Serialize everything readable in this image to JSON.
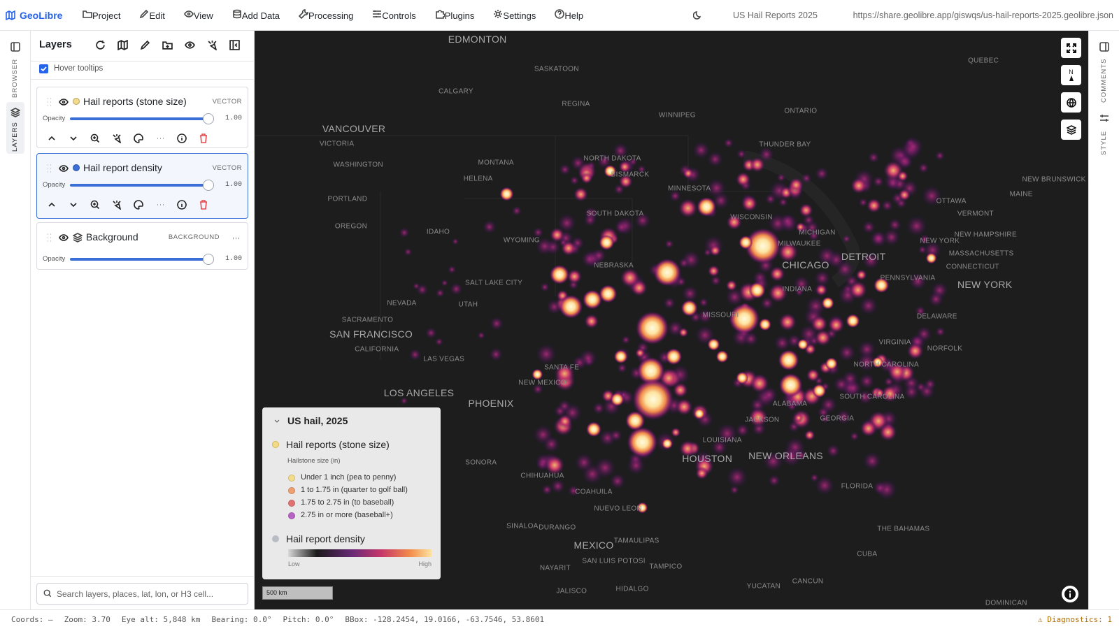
{
  "header": {
    "brand": "GeoLibre",
    "menu": [
      "Project",
      "Edit",
      "View",
      "Add Data",
      "Processing",
      "Controls",
      "Plugins",
      "Settings",
      "Help"
    ],
    "project_title": "US Hail Reports 2025",
    "url": "https://share.geolibre.app/giswqs/us-hail-reports-2025.geolibre.json"
  },
  "left_rail": [
    "BROWSER",
    "LAYERS"
  ],
  "right_rail": [
    "COMMENTS",
    "STYLE"
  ],
  "layers_panel": {
    "title": "Layers",
    "hover_tooltips": "Hover tooltips",
    "layers": [
      {
        "name": "Hail reports (stone size)",
        "kind": "VECTOR",
        "color": "#f3d98a",
        "opacity_label": "Opacity",
        "opacity": "1.00"
      },
      {
        "name": "Hail report density",
        "kind": "VECTOR",
        "color": "#3b6fd8",
        "opacity_label": "Opacity",
        "opacity": "1.00"
      },
      {
        "name": "Background",
        "kind": "BACKGROUND",
        "opacity_label": "Opacity",
        "opacity": "1.00"
      }
    ],
    "search_placeholder": "Search layers, places, lat, lon, or H3 cell..."
  },
  "legend": {
    "title": "US hail, 2025",
    "reports": {
      "name": "Hail reports (stone size)",
      "color": "#f3d98a",
      "subtitle": "Hailstone size (in)",
      "items": [
        {
          "label": "Under 1 inch (pea to penny)",
          "color": "#f3dc8a"
        },
        {
          "label": "1 to 1.75 in (quarter to golf ball)",
          "color": "#eea070"
        },
        {
          "label": "1.75 to 2.75 in (to baseball)",
          "color": "#e27272"
        },
        {
          "label": "2.75 in or more (baseball+)",
          "color": "#b862c5"
        }
      ]
    },
    "density": {
      "name": "Hail report density",
      "color": "#b8bcc4",
      "low": "Low",
      "high": "High"
    }
  },
  "map": {
    "compass": "N",
    "scale": "500 km",
    "labels": [
      "EDMONTON",
      "SASKATOON",
      "CALGARY",
      "REGINA",
      "WINNIPEG",
      "ONTARIO",
      "QUEBEC",
      "VANCOUVER",
      "VICTORIA",
      "WASHINGTON",
      "THUNDER BAY",
      "NORTH DAKOTA",
      "MONTANA",
      "HELENA",
      "BISMARCK",
      "MINNESOTA",
      "NEW BRUNSWICK",
      "MAINE",
      "PORTLAND",
      "OTTAWA",
      "VERMONT",
      "SOUTH DAKOTA",
      "WISCONSIN",
      "OREGON",
      "IDAHO",
      "MICHIGAN",
      "NEW HAMPSHIRE",
      "WYOMING",
      "MILWAUKEE",
      "NEW YORK",
      "DETROIT",
      "MASSACHUSETTS",
      "CONNECTICUT",
      "CHICAGO",
      "NEBRASKA",
      "PENNSYLVANIA",
      "SALT LAKE CITY",
      "NEW YORK",
      "NEVADA",
      "UTAH",
      "INDIANA",
      "MISSOURI",
      "DELAWARE",
      "SACRAMENTO",
      "SAN FRANCISCO",
      "VIRGINIA",
      "NORFOLK",
      "CALIFORNIA",
      "LAS VEGAS",
      "SANTA FE",
      "NORTH CAROLINA",
      "NEW MEXICO",
      "LOS ANGELES",
      "PHOENIX",
      "ALABAMA",
      "SOUTH CAROLINA",
      "GEORGIA",
      "JACKSON",
      "LOUISIANA",
      "HOUSTON",
      "NEW ORLEANS",
      "SONORA",
      "CHIHUAHUA",
      "COAHUILA",
      "FLORIDA",
      "NUEVO LEON",
      "SINALOA",
      "DURANGO",
      "THE BAHAMAS",
      "TAMAULIPAS",
      "MEXICO",
      "SAN LUIS POTOSI",
      "CUBA",
      "NAYARIT",
      "TAMPICO",
      "YUCATAN",
      "CANCUN",
      "JALISCO",
      "HIDALGO",
      "DOMINICAN"
    ]
  },
  "status_bar": {
    "items": [
      "Coords: —",
      "Zoom: 3.70",
      "Eye alt: 5,848 km",
      "Bearing: 0.0°",
      "Pitch: 0.0°",
      "BBox: -128.2454, 19.0166, -63.7546, 53.8601"
    ],
    "diagnostics": "Diagnostics: 1"
  }
}
